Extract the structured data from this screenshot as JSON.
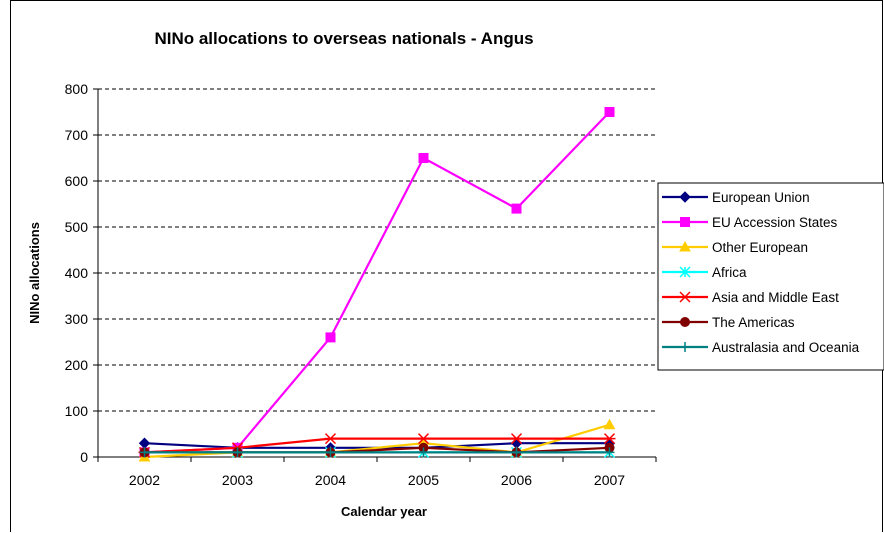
{
  "chart_data": {
    "type": "line",
    "title": "NINo allocations to overseas nationals  - Angus",
    "xlabel": "Calendar year",
    "ylabel": "NINo allocations",
    "categories": [
      "2002",
      "2003",
      "2004",
      "2005",
      "2006",
      "2007"
    ],
    "ylim": [
      0,
      800
    ],
    "yticks": [
      0,
      100,
      200,
      300,
      400,
      500,
      600,
      700,
      800
    ],
    "grid": "horizontal dashed",
    "legend": "right",
    "series": [
      {
        "name": "European Union",
        "values": [
          30,
          20,
          20,
          20,
          30,
          30
        ],
        "color": "#000080",
        "marker": "diamond"
      },
      {
        "name": "EU Accession States",
        "values": [
          10,
          20,
          260,
          650,
          540,
          750
        ],
        "color": "#FF00FF",
        "marker": "square"
      },
      {
        "name": "Other European",
        "values": [
          0,
          10,
          10,
          30,
          10,
          70
        ],
        "color": "#FFCC00",
        "marker": "triangle"
      },
      {
        "name": "Africa",
        "values": [
          10,
          10,
          10,
          10,
          10,
          10
        ],
        "color": "#00FFFF",
        "marker": "asterisk"
      },
      {
        "name": "Asia and Middle East",
        "values": [
          10,
          20,
          40,
          40,
          40,
          40
        ],
        "color": "#FF0000",
        "marker": "star"
      },
      {
        "name": "The Americas",
        "values": [
          10,
          10,
          10,
          20,
          10,
          20
        ],
        "color": "#800000",
        "marker": "circle"
      },
      {
        "name": "Australasia and Oceania",
        "values": [
          10,
          10,
          10,
          10,
          10,
          10
        ],
        "color": "#008080",
        "marker": "plus"
      }
    ]
  }
}
